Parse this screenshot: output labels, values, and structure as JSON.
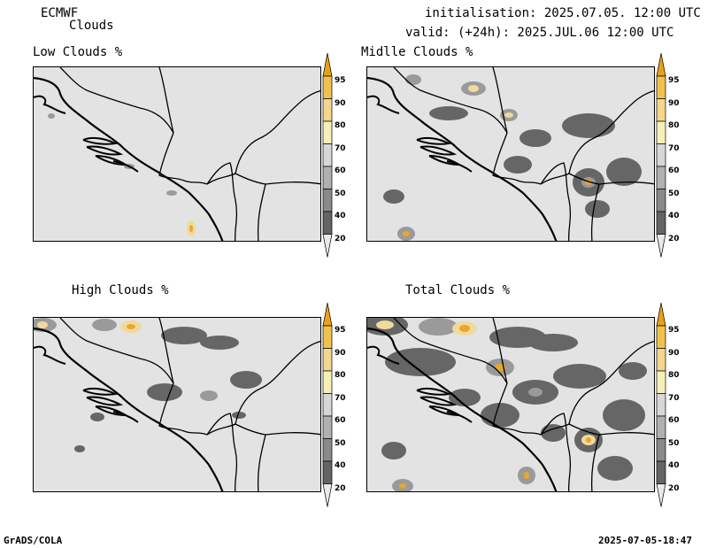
{
  "header": {
    "model": "ECMWF",
    "product": "Clouds",
    "init": "initialisation: 2025.07.05. 12:00 UTC",
    "valid": "valid: (+24h): 2025.JUL.06 12:00 UTC"
  },
  "panels": [
    {
      "id": "low",
      "title": "Low Clouds %"
    },
    {
      "id": "middle",
      "title": "Midlle Clouds %"
    },
    {
      "id": "high",
      "title": "High Clouds %"
    },
    {
      "id": "total",
      "title": "Total Clouds %"
    }
  ],
  "colorbar": {
    "labels": [
      "95",
      "90",
      "80",
      "70",
      "60",
      "50",
      "40",
      "20"
    ],
    "colors": [
      "#e8a21a",
      "#efc24e",
      "#f3d78c",
      "#f6f0b8",
      "#d7d7d7",
      "#b0b0b0",
      "#8a8a8a",
      "#646464",
      "#e9e9e9"
    ]
  },
  "footer": {
    "left": "GrADS/COLA",
    "right": "2025-07-05-18:47"
  }
}
